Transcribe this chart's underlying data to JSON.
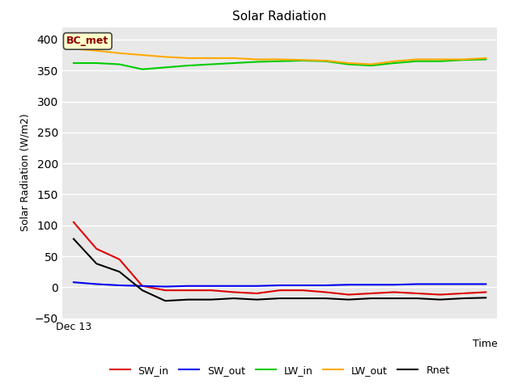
{
  "title": "Solar Radiation",
  "xlabel": "Time",
  "ylabel": "Solar Radiation (W/m2)",
  "annotation": "BC_met",
  "ylim": [
    -50,
    420
  ],
  "yticks": [
    -50,
    0,
    50,
    100,
    150,
    200,
    250,
    300,
    350,
    400
  ],
  "x_label_text": "Dec 13",
  "plot_bg_color": "#e8e8e8",
  "fig_bg_color": "#ffffff",
  "grid_color": "#ffffff",
  "series": {
    "SW_in": {
      "color": "#dd0000",
      "values": [
        105,
        62,
        45,
        2,
        -5,
        -5,
        -5,
        -8,
        -10,
        -5,
        -5,
        -8,
        -12,
        -10,
        -8,
        -10,
        -12,
        -10,
        -8
      ]
    },
    "SW_out": {
      "color": "#0000ee",
      "values": [
        8,
        5,
        3,
        2,
        1,
        2,
        2,
        2,
        2,
        3,
        3,
        3,
        4,
        4,
        4,
        5,
        5,
        5,
        5
      ]
    },
    "LW_in": {
      "color": "#00cc00",
      "values": [
        362,
        362,
        360,
        352,
        355,
        358,
        360,
        362,
        364,
        365,
        366,
        365,
        360,
        358,
        362,
        365,
        365,
        367,
        368
      ]
    },
    "LW_out": {
      "color": "#ffaa00",
      "values": [
        385,
        382,
        378,
        375,
        372,
        370,
        370,
        370,
        368,
        368,
        367,
        366,
        362,
        360,
        365,
        368,
        368,
        368,
        370
      ]
    },
    "Rnet": {
      "color": "#000000",
      "values": [
        78,
        38,
        25,
        -5,
        -22,
        -20,
        -20,
        -18,
        -20,
        -18,
        -18,
        -18,
        -20,
        -18,
        -18,
        -18,
        -20,
        -18,
        -17
      ]
    }
  },
  "legend_order": [
    "SW_in",
    "SW_out",
    "LW_in",
    "LW_out",
    "Rnet"
  ]
}
